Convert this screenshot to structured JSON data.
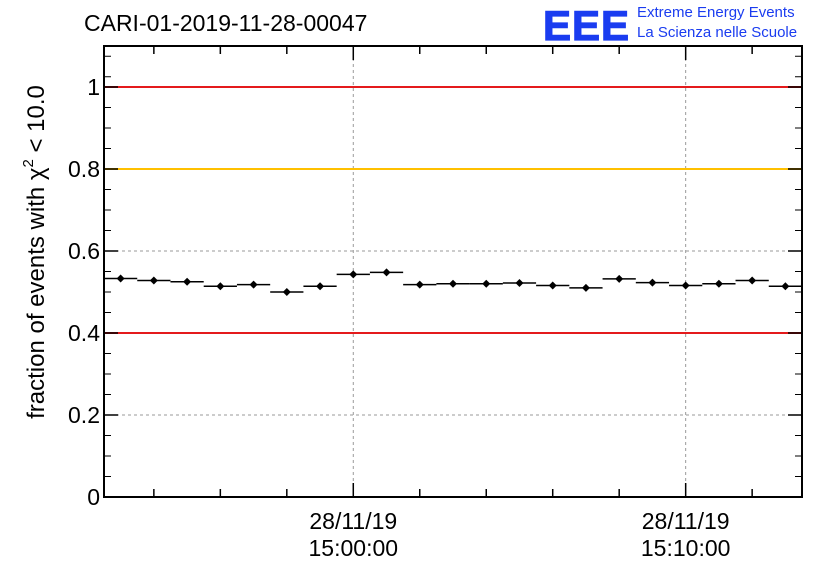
{
  "header": {
    "title": "CARI-01-2019-11-28-00047",
    "logo_mark": "EEE",
    "logo_line1": "Extreme Energy Events",
    "logo_line2": "La Scienza nelle Scuole"
  },
  "chart_data": {
    "type": "scatter",
    "title": "CARI-01-2019-11-28-00047",
    "ylabel_main": "fraction of events with χ",
    "ylabel_sup": "2",
    "ylabel_tail": " < 10.0",
    "xlabel": "",
    "xlim": [
      0,
      21
    ],
    "ylim": [
      0,
      1.1
    ],
    "yticks": [
      0,
      0.2,
      0.4,
      0.6,
      0.8,
      1
    ],
    "ytick_labels": [
      "0",
      "0.2",
      "0.4",
      "0.6",
      "0.8",
      "1"
    ],
    "y_gridlines": [
      0.2,
      0.6
    ],
    "xticks_major": [
      {
        "x": 7.5,
        "line1": "28/11/19",
        "line2": "15:00:00"
      },
      {
        "x": 17.5,
        "line1": "28/11/19",
        "line2": "15:10:00"
      }
    ],
    "reference_lines": [
      {
        "y": 1.0,
        "color": "#e41a1c"
      },
      {
        "y": 0.8,
        "color": "#ffc000"
      },
      {
        "y": 0.4,
        "color": "#e41a1c"
      }
    ],
    "series": [
      {
        "name": "fraction",
        "x_halfwidth": 0.5,
        "x": [
          0.5,
          1.5,
          2.5,
          3.5,
          4.5,
          5.5,
          6.5,
          7.5,
          8.5,
          9.5,
          10.5,
          11.5,
          12.5,
          13.5,
          14.5,
          15.5,
          16.5,
          17.5,
          18.5,
          19.5,
          20.5
        ],
        "y": [
          0.533,
          0.528,
          0.525,
          0.514,
          0.518,
          0.5,
          0.514,
          0.543,
          0.548,
          0.518,
          0.52,
          0.52,
          0.522,
          0.516,
          0.51,
          0.532,
          0.523,
          0.516,
          0.52,
          0.528,
          0.514
        ],
        "err": [
          0.006,
          0.006,
          0.006,
          0.006,
          0.006,
          0.006,
          0.006,
          0.006,
          0.006,
          0.006,
          0.006,
          0.006,
          0.006,
          0.006,
          0.006,
          0.006,
          0.006,
          0.006,
          0.006,
          0.006,
          0.006
        ]
      }
    ]
  }
}
